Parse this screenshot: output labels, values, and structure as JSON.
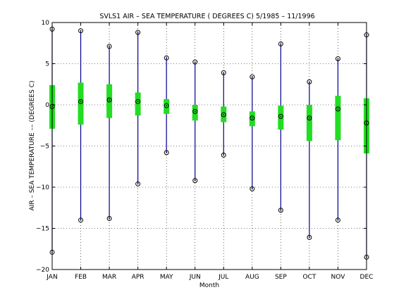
{
  "chart_data": {
    "type": "box",
    "title": "SVLS1  AIR – SEA TEMPERATURE ( DEGREES C) 5/1985 – 11/1996",
    "xlabel": "Month",
    "ylabel": "AIR – SEA TEMPERATURE  ––  (DEGREES C)",
    "ylim": [
      -20,
      10
    ],
    "yticks": [
      -20,
      -15,
      -10,
      -5,
      0,
      5,
      10
    ],
    "ytick_labels": [
      "−20",
      "−15",
      "−10",
      "−5",
      "0",
      "5",
      "10"
    ],
    "grid": true,
    "categories": [
      "JAN",
      "FEB",
      "MAR",
      "APR",
      "MAY",
      "JUN",
      "JUL",
      "AUG",
      "SEP",
      "OCT",
      "NOV",
      "DEC"
    ],
    "series": [
      {
        "values": [
          {
            "min": -17.9,
            "q1": -2.9,
            "median": -0.2,
            "q3": 2.4,
            "max": 9.2
          },
          {
            "min": -14.0,
            "q1": -2.4,
            "median": 0.4,
            "q3": 2.7,
            "max": 9.0
          },
          {
            "min": -13.8,
            "q1": -1.6,
            "median": 0.6,
            "q3": 2.5,
            "max": 7.1
          },
          {
            "min": -9.6,
            "q1": -1.3,
            "median": 0.4,
            "q3": 1.5,
            "max": 8.8
          },
          {
            "min": -5.8,
            "q1": -1.1,
            "median": -0.1,
            "q3": 0.7,
            "max": 5.7
          },
          {
            "min": -9.2,
            "q1": -1.9,
            "median": -0.8,
            "q3": 0.0,
            "max": 5.2
          },
          {
            "min": -6.1,
            "q1": -2.1,
            "median": -1.2,
            "q3": -0.2,
            "max": 3.9
          },
          {
            "min": -10.2,
            "q1": -2.6,
            "median": -1.6,
            "q3": -0.8,
            "max": 3.4
          },
          {
            "min": -12.8,
            "q1": -3.0,
            "median": -1.4,
            "q3": -0.1,
            "max": 7.4
          },
          {
            "min": -16.1,
            "q1": -4.4,
            "median": -1.6,
            "q3": 0.0,
            "max": 2.8
          },
          {
            "min": -14.0,
            "q1": -4.3,
            "median": -0.5,
            "q3": 1.1,
            "max": 5.6
          },
          {
            "min": -18.5,
            "q1": -5.9,
            "median": -2.2,
            "q3": 0.8,
            "max": 8.5
          }
        ]
      }
    ],
    "colors": {
      "whisker": "#00008b",
      "box": "#22dd22",
      "marker": "#000000",
      "grid": "#000000"
    }
  }
}
